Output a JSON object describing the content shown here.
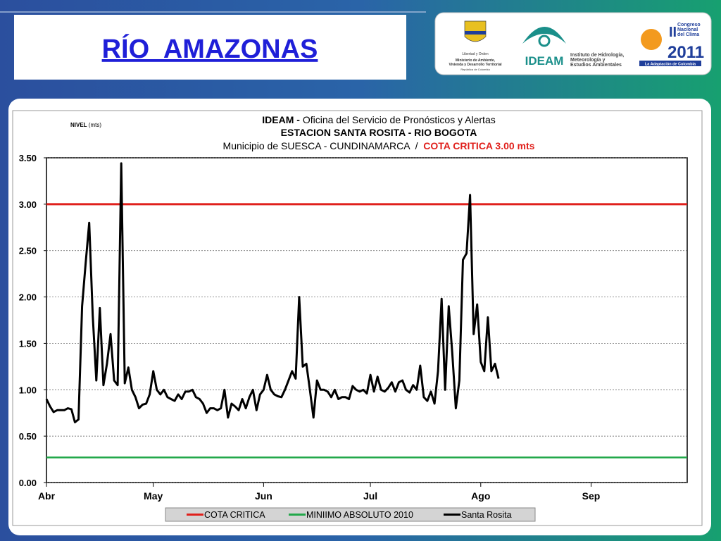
{
  "header": {
    "title": "RÍO  AMAZONAS"
  },
  "logos": {
    "coat_caption": [
      "Libertad y Orden",
      "Ministerio de Ambiente,",
      "Vivienda y Desarrollo Territorial",
      "República de Colombia"
    ],
    "ideam": "IDEAM",
    "ideam_caption": [
      "Instituto de Hidrología,",
      "Meteorología y",
      "Estudios Ambientales"
    ],
    "congreso": [
      "II",
      "Congreso",
      "Nacional",
      "del Clima",
      "2011"
    ],
    "congreso_caption": "La Adaptación de Colombia"
  },
  "chart_data": {
    "type": "line",
    "title_prefix": "IDEAM -",
    "title": " Oficina del Servicio de Pronósticos y Alertas",
    "subtitle": "ESTACION SANTA ROSITA - RIO BOGOTA",
    "subtitle2": "Municipio de SUESCA - CUNDINAMARCA  /  ",
    "subtitle2_highlight": "COTA CRITICA 3.00 mts",
    "y_label": "NIVEL",
    "y_unit": " (mts)",
    "xlim": [
      0,
      180
    ],
    "xticks": [
      {
        "value": 0,
        "label": "Abr"
      },
      {
        "value": 30,
        "label": "May"
      },
      {
        "value": 61,
        "label": "Jun"
      },
      {
        "value": 91,
        "label": "Jul"
      },
      {
        "value": 122,
        "label": "Ago"
      },
      {
        "value": 153,
        "label": "Sep"
      }
    ],
    "ylim": [
      0,
      3.5
    ],
    "yticks": [
      {
        "value": 0,
        "label": "0.00"
      },
      {
        "value": 0.5,
        "label": "0.50"
      },
      {
        "value": 1,
        "label": "1.00"
      },
      {
        "value": 1.5,
        "label": "1.50"
      },
      {
        "value": 2,
        "label": "2.00"
      },
      {
        "value": 2.5,
        "label": "2.50"
      },
      {
        "value": 3,
        "label": "3.00"
      },
      {
        "value": 3.5,
        "label": "3.50"
      }
    ],
    "grid": true,
    "series": [
      {
        "name": "COTA CRITICA",
        "color": "#e0201c",
        "width": 3,
        "x": [
          0,
          180
        ],
        "values": [
          3,
          3
        ]
      },
      {
        "name": "MINIIMO ABSOLUTO 2010",
        "color": "#22a84a",
        "width": 2.5,
        "x": [
          0,
          180
        ],
        "values": [
          0.27,
          0.27
        ]
      },
      {
        "name": "Santa Rosita",
        "color": "#000000",
        "width": 3,
        "x": [
          0,
          1,
          2,
          3,
          4,
          5,
          6,
          7,
          8,
          9,
          10,
          11,
          12,
          13,
          14,
          15,
          16,
          17,
          18,
          19,
          20,
          21,
          22,
          23,
          24,
          25,
          26,
          27,
          28,
          29,
          30,
          31,
          32,
          33,
          34,
          35,
          36,
          37,
          38,
          39,
          40,
          41,
          42,
          43,
          44,
          45,
          46,
          47,
          48,
          49,
          50,
          51,
          52,
          53,
          54,
          55,
          56,
          57,
          58,
          59,
          60,
          61,
          62,
          63,
          64,
          65,
          66,
          67,
          68,
          69,
          70,
          71,
          72,
          73,
          74,
          75,
          76,
          77,
          78,
          79,
          80,
          81,
          82,
          83,
          84,
          85,
          86,
          87,
          88,
          89,
          90,
          91,
          92,
          93,
          94,
          95,
          96,
          97,
          98,
          99,
          100,
          101,
          102,
          103,
          104,
          105,
          106,
          107,
          108,
          109,
          110,
          111,
          112,
          113,
          114,
          115,
          116,
          117,
          118,
          119,
          120,
          121,
          122,
          123,
          124,
          125,
          126,
          127
        ],
        "values": [
          0.9,
          0.82,
          0.76,
          0.78,
          0.78,
          0.78,
          0.8,
          0.79,
          0.65,
          0.68,
          1.9,
          2.36,
          2.8,
          1.8,
          1.1,
          1.88,
          1.05,
          1.28,
          1.6,
          1.1,
          1.05,
          3.44,
          1.07,
          1.24,
          1.0,
          0.92,
          0.8,
          0.84,
          0.85,
          0.95,
          1.2,
          1.0,
          0.95,
          1.0,
          0.92,
          0.9,
          0.88,
          0.95,
          0.9,
          0.98,
          0.98,
          1.0,
          0.92,
          0.9,
          0.85,
          0.75,
          0.8,
          0.8,
          0.78,
          0.8,
          1.0,
          0.7,
          0.85,
          0.82,
          0.78,
          0.9,
          0.8,
          0.92,
          1.0,
          0.78,
          0.95,
          1.0,
          1.16,
          1.0,
          0.95,
          0.93,
          0.92,
          1.0,
          1.1,
          1.2,
          1.12,
          2.0,
          1.25,
          1.28,
          1.0,
          0.7,
          1.1,
          1.0,
          1.0,
          0.98,
          0.92,
          1.0,
          0.9,
          0.92,
          0.92,
          0.9,
          1.04,
          1.0,
          0.98,
          1.0,
          0.96,
          1.16,
          0.98,
          1.14,
          1.0,
          0.98,
          1.02,
          1.08,
          0.98,
          1.08,
          1.1,
          1.0,
          0.97,
          1.05,
          1.0,
          1.26,
          0.92,
          0.88,
          0.98,
          0.85,
          1.2,
          1.98,
          1.0,
          1.9,
          1.4,
          0.8,
          1.1,
          2.4,
          2.47,
          3.1,
          1.6,
          1.92,
          1.3,
          1.2,
          1.78,
          1.2,
          1.28,
          1.12
        ]
      }
    ]
  }
}
